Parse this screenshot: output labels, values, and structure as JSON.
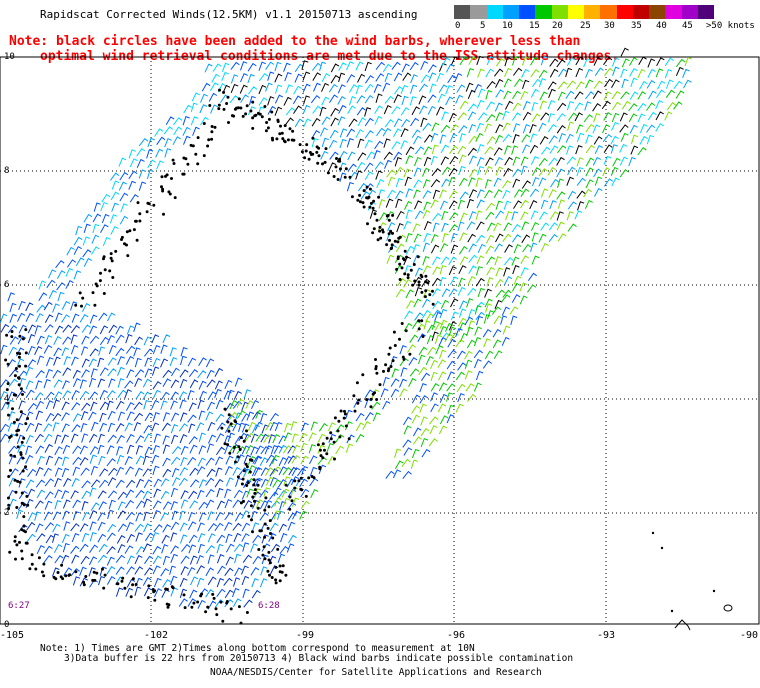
{
  "title": "Rapidscat Corrected Winds(12.5KM) v1.1 20150713 ascending",
  "note": {
    "line1": "Note: black circles have been added to the wind barbs, wherever less than",
    "line2": "optimal wind retrieval conditions are met due to the ISS attitude changes."
  },
  "legend": {
    "labels": [
      "0",
      "5",
      "10",
      "15",
      "20",
      "25",
      "30",
      "35",
      "40",
      "45",
      ">50 knots"
    ],
    "colors": [
      "#555555",
      "#9a9a9a",
      "#00d8ff",
      "#00a0ff",
      "#0050ff",
      "#00c800",
      "#7fe000",
      "#ffff00",
      "#ffb000",
      "#ff7000",
      "#ff0000",
      "#c00000",
      "#8b4500",
      "#e000e0",
      "#a000c8",
      "#500078"
    ]
  },
  "axes": {
    "y_labels": [
      "10",
      "8",
      "6",
      "4",
      "2",
      "0"
    ],
    "x_labels": [
      "-105",
      "-102",
      "-99",
      "-96",
      "-93",
      "-90"
    ]
  },
  "times": [
    "6:27",
    "6:28"
  ],
  "footer": {
    "line1": "Note: 1) Times are GMT 2)Times along bottom correspond to measurement at 10N",
    "line2": "3)Data buffer is 22 hrs from 20150713 4) Black wind barbs indicate possible contamination",
    "line3": "NOAA/NESDIS/Center for Satellite Applications and Research"
  }
}
